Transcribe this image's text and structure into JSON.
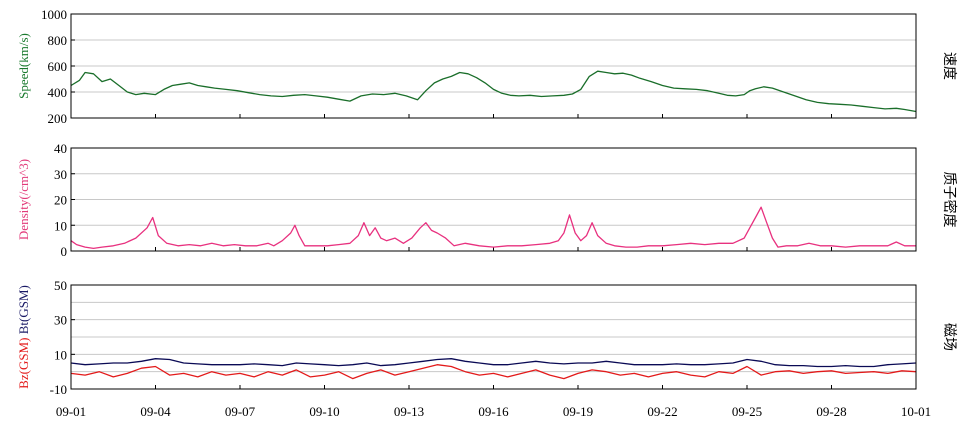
{
  "chart_data": [
    {
      "type": "line",
      "panel": "speed",
      "ylabel": "Speed(km/s)",
      "ylabel_color": "#1a7a2e",
      "side_label": "速度",
      "ylim": [
        200,
        1000
      ],
      "yticks": [
        "1000",
        "800",
        "600",
        "400",
        "200"
      ],
      "grid": true,
      "series": [
        {
          "color": "#1a6e2a",
          "x": [
            0,
            0.3,
            0.5,
            0.8,
            1.1,
            1.4,
            1.7,
            2.0,
            2.3,
            2.6,
            3.0,
            3.3,
            3.6,
            3.9,
            4.2,
            4.5,
            4.8,
            5.1,
            5.5,
            5.9,
            6.3,
            6.7,
            7.1,
            7.5,
            7.9,
            8.3,
            8.7,
            9.1,
            9.5,
            9.9,
            10.3,
            10.7,
            11.1,
            11.5,
            11.9,
            12.3,
            12.6,
            12.9,
            13.2,
            13.5,
            13.8,
            14.1,
            14.4,
            14.7,
            15.0,
            15.3,
            15.6,
            15.9,
            16.3,
            16.7,
            17.1,
            17.5,
            17.8,
            18.1,
            18.4,
            18.7,
            19.0,
            19.3,
            19.6,
            19.9,
            20.2,
            20.6,
            21.0,
            21.4,
            21.8,
            22.2,
            22.6,
            23.0,
            23.3,
            23.6,
            23.9,
            24.1,
            24.3,
            24.6,
            24.9,
            25.3,
            25.7,
            26.1,
            26.5,
            26.9,
            27.3,
            27.7,
            28.1,
            28.5,
            28.9,
            29.3,
            29.6,
            30.0
          ],
          "values": [
            450,
            490,
            550,
            540,
            480,
            500,
            450,
            400,
            380,
            390,
            380,
            420,
            450,
            460,
            470,
            450,
            440,
            430,
            420,
            410,
            395,
            380,
            370,
            365,
            375,
            380,
            370,
            360,
            345,
            330,
            370,
            385,
            380,
            390,
            370,
            340,
            410,
            470,
            500,
            520,
            550,
            540,
            510,
            470,
            420,
            390,
            375,
            370,
            375,
            365,
            370,
            375,
            385,
            420,
            520,
            560,
            550,
            540,
            545,
            530,
            505,
            480,
            450,
            430,
            425,
            420,
            410,
            390,
            375,
            370,
            380,
            410,
            425,
            440,
            430,
            400,
            370,
            340,
            320,
            310,
            305,
            300,
            290,
            280,
            270,
            275,
            265,
            250
          ]
        }
      ]
    },
    {
      "type": "line",
      "panel": "density",
      "ylabel": "Density(/cm^3)",
      "ylabel_color": "#e23a7a",
      "side_label": "质子密度",
      "ylim": [
        0,
        40
      ],
      "yticks": [
        "40",
        "30",
        "20",
        "10",
        "0"
      ],
      "grid": true,
      "series": [
        {
          "color": "#e8317f",
          "x": [
            0,
            0.2,
            0.5,
            0.8,
            1.1,
            1.5,
            1.9,
            2.3,
            2.7,
            2.9,
            3.1,
            3.4,
            3.8,
            4.2,
            4.6,
            5.0,
            5.4,
            5.8,
            6.2,
            6.6,
            7.0,
            7.2,
            7.5,
            7.8,
            7.95,
            8.1,
            8.3,
            8.7,
            9.1,
            9.5,
            9.9,
            10.2,
            10.4,
            10.6,
            10.8,
            11.0,
            11.2,
            11.5,
            11.8,
            12.1,
            12.4,
            12.6,
            12.8,
            13.0,
            13.3,
            13.6,
            14.0,
            14.5,
            15.0,
            15.5,
            16.0,
            16.5,
            17.0,
            17.3,
            17.5,
            17.7,
            17.9,
            18.1,
            18.3,
            18.5,
            18.7,
            19.0,
            19.3,
            19.7,
            20.1,
            20.5,
            21.0,
            21.5,
            22.0,
            22.5,
            23.0,
            23.5,
            23.9,
            24.1,
            24.3,
            24.5,
            24.7,
            24.9,
            25.1,
            25.4,
            25.8,
            26.2,
            26.6,
            27.0,
            27.5,
            28.0,
            28.5,
            29.0,
            29.3,
            29.6,
            30.0
          ],
          "values": [
            4,
            2.5,
            1.5,
            1,
            1.5,
            2,
            3,
            5,
            9,
            13,
            6,
            3,
            2,
            2.5,
            2,
            3,
            2,
            2.5,
            2,
            2,
            3,
            2,
            4,
            7,
            10,
            6,
            2,
            2,
            2,
            2.5,
            3,
            6,
            11,
            6,
            9,
            5,
            4,
            5,
            3,
            5,
            9,
            11,
            8,
            7,
            5,
            2,
            3,
            2,
            1.5,
            2,
            2,
            2.5,
            3,
            4,
            7,
            14,
            7,
            4,
            6,
            11,
            6,
            3,
            2,
            1.5,
            1.5,
            2,
            2,
            2.5,
            3,
            2.5,
            3,
            3,
            5,
            9,
            13,
            17,
            11,
            5,
            1.5,
            2,
            2,
            3,
            2,
            2,
            1.5,
            2,
            2,
            2,
            3.5,
            2,
            2
          ]
        }
      ]
    },
    {
      "type": "line",
      "panel": "magnetic",
      "ylabel_parts": [
        {
          "text": "Bz(GSM)",
          "color": "#e31a1a"
        },
        {
          "text": " Bt(GSM)",
          "color": "#1a1a66"
        }
      ],
      "side_label": "磁场",
      "ylim": [
        -10,
        50
      ],
      "yticks": [
        "50",
        "30",
        "10",
        "-10"
      ],
      "yticks_values": [
        50,
        30,
        10,
        -10
      ],
      "grid_values": [
        50,
        40,
        30,
        20,
        10,
        0,
        -10
      ],
      "grid": true,
      "series": [
        {
          "color": "#0a0a55",
          "x": [
            0,
            0.5,
            1.0,
            1.5,
            2.0,
            2.5,
            3.0,
            3.5,
            4.0,
            4.5,
            5.0,
            5.5,
            6.0,
            6.5,
            7.0,
            7.5,
            8.0,
            8.5,
            9.0,
            9.5,
            10.0,
            10.5,
            11.0,
            11.5,
            12.0,
            12.5,
            13.0,
            13.5,
            14.0,
            14.5,
            15.0,
            15.5,
            16.0,
            16.5,
            17.0,
            17.5,
            18.0,
            18.5,
            19.0,
            19.5,
            20.0,
            20.5,
            21.0,
            21.5,
            22.0,
            22.5,
            23.0,
            23.5,
            24.0,
            24.5,
            25.0,
            25.5,
            26.0,
            26.5,
            27.0,
            27.5,
            28.0,
            28.5,
            29.0,
            29.5,
            30.0
          ],
          "values": [
            5,
            4,
            4.5,
            5,
            5,
            6,
            7.5,
            7,
            5,
            4.5,
            4,
            4,
            4,
            4.5,
            4,
            3.5,
            5,
            4.5,
            4,
            3.5,
            4,
            5,
            3.5,
            4,
            5,
            6,
            7,
            7.5,
            6,
            5,
            4,
            4,
            5,
            6,
            5,
            4.5,
            5,
            5,
            6,
            5,
            4,
            4,
            4,
            4.5,
            4,
            4,
            4.5,
            5,
            7,
            6,
            4,
            3.5,
            3.5,
            3,
            3,
            3.5,
            3,
            3,
            4,
            4.5,
            5
          ]
        },
        {
          "color": "#e31a1a",
          "x": [
            0,
            0.5,
            1.0,
            1.5,
            2.0,
            2.5,
            3.0,
            3.5,
            4.0,
            4.5,
            5.0,
            5.5,
            6.0,
            6.5,
            7.0,
            7.5,
            8.0,
            8.5,
            9.0,
            9.5,
            10.0,
            10.5,
            11.0,
            11.5,
            12.0,
            12.5,
            13.0,
            13.5,
            14.0,
            14.5,
            15.0,
            15.5,
            16.0,
            16.5,
            17.0,
            17.5,
            18.0,
            18.5,
            19.0,
            19.5,
            20.0,
            20.5,
            21.0,
            21.5,
            22.0,
            22.5,
            23.0,
            23.5,
            24.0,
            24.5,
            25.0,
            25.5,
            26.0,
            26.5,
            27.0,
            27.5,
            28.0,
            28.5,
            29.0,
            29.5,
            30.0
          ],
          "values": [
            -1,
            -2,
            0,
            -3,
            -1,
            2,
            3,
            -2,
            -1,
            -3,
            0,
            -2,
            -1,
            -3,
            0,
            -2,
            1,
            -3,
            -2,
            0,
            -4,
            -1,
            1,
            -2,
            0,
            2,
            4,
            3,
            0,
            -2,
            -1,
            -3,
            -1,
            1,
            -2,
            -4,
            -1,
            1,
            0,
            -2,
            -1,
            -3,
            -1,
            0,
            -2,
            -3,
            0,
            -1,
            3,
            -2,
            0,
            0.5,
            -1,
            0,
            0.5,
            -1,
            -0.5,
            0,
            -1,
            0.5,
            0
          ]
        }
      ]
    }
  ],
  "x_axis": {
    "tick_labels": [
      "09-01",
      "09-04",
      "09-07",
      "09-10",
      "09-13",
      "09-16",
      "09-19",
      "09-22",
      "09-25",
      "09-28",
      "10-01"
    ],
    "tick_days": [
      0,
      3,
      6,
      9,
      12,
      15,
      18,
      21,
      24,
      27,
      30
    ],
    "xlim": [
      0,
      30
    ]
  }
}
